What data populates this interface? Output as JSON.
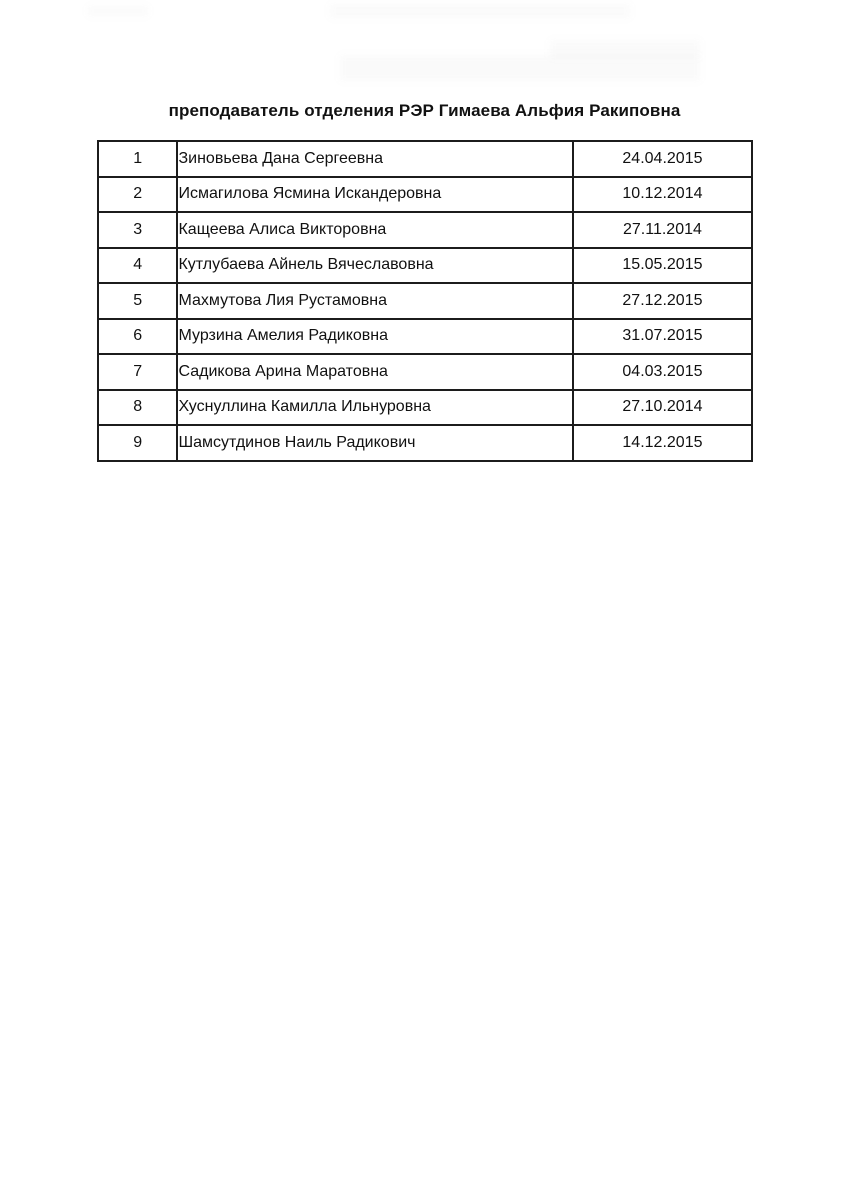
{
  "title": "преподаватель отделения РЭР Гимаева Альфия Ракиповна",
  "table": {
    "rows": [
      {
        "num": "1",
        "name": "Зиновьева Дана Сергеевна",
        "date": "24.04.2015"
      },
      {
        "num": "2",
        "name": "Исмагилова Ясмина Искандеровна",
        "date": "10.12.2014"
      },
      {
        "num": "3",
        "name": "Кащеева Алиса Викторовна",
        "date": "27.11.2014"
      },
      {
        "num": "4",
        "name": "Кутлубаева Айнель Вячеславовна",
        "date": "15.05.2015"
      },
      {
        "num": "5",
        "name": "Махмутова Лия Рустамовна",
        "date": "27.12.2015"
      },
      {
        "num": "6",
        "name": "Мурзина Амелия Радиковна",
        "date": "31.07.2015"
      },
      {
        "num": "7",
        "name": "Садикова Арина Маратовна",
        "date": "04.03.2015"
      },
      {
        "num": "8",
        "name": "Хуснуллина Камилла Ильнуровна",
        "date": "27.10.2014"
      },
      {
        "num": "9",
        "name": "Шамсутдинов Наиль Радикович",
        "date": "14.12.2015"
      }
    ]
  }
}
